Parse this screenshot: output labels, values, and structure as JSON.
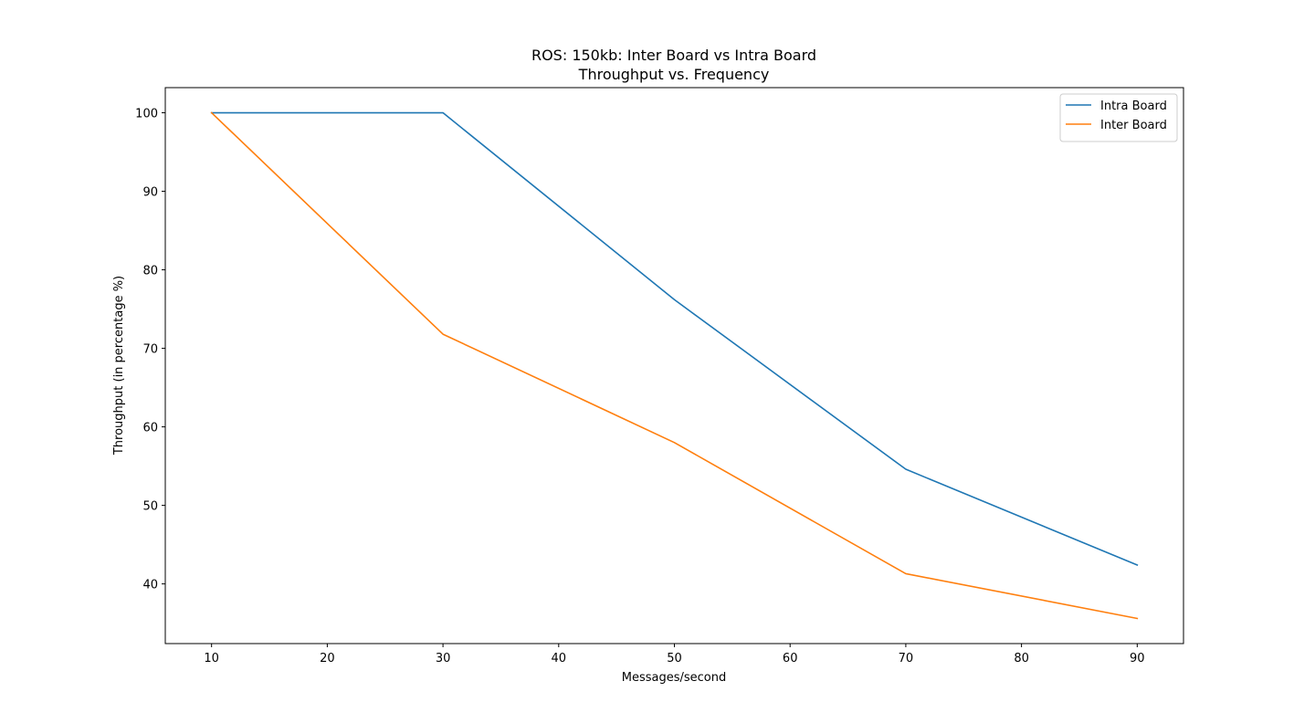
{
  "chart_data": {
    "type": "line",
    "title": "ROS: 150kb: Inter Board vs Intra Board",
    "subtitle": "Throughput vs. Frequency",
    "xlabel": "Messages/second",
    "ylabel": "Throughput (in percentage %)",
    "x": [
      10,
      30,
      50,
      70,
      90
    ],
    "series": [
      {
        "name": "Intra Board",
        "color": "#1f77b4",
        "values": [
          100,
          100,
          76.2,
          54.6,
          42.4
        ]
      },
      {
        "name": "Inter Board",
        "color": "#ff7f0e",
        "values": [
          100,
          71.8,
          58.0,
          41.3,
          35.6
        ]
      }
    ],
    "xlim": [
      6,
      94
    ],
    "ylim": [
      32.4,
      103.2
    ],
    "xticks": [
      10,
      20,
      30,
      40,
      50,
      60,
      70,
      80,
      90
    ],
    "yticks": [
      40,
      50,
      60,
      70,
      80,
      90,
      100
    ],
    "grid": false,
    "legend_position": "top-right"
  }
}
